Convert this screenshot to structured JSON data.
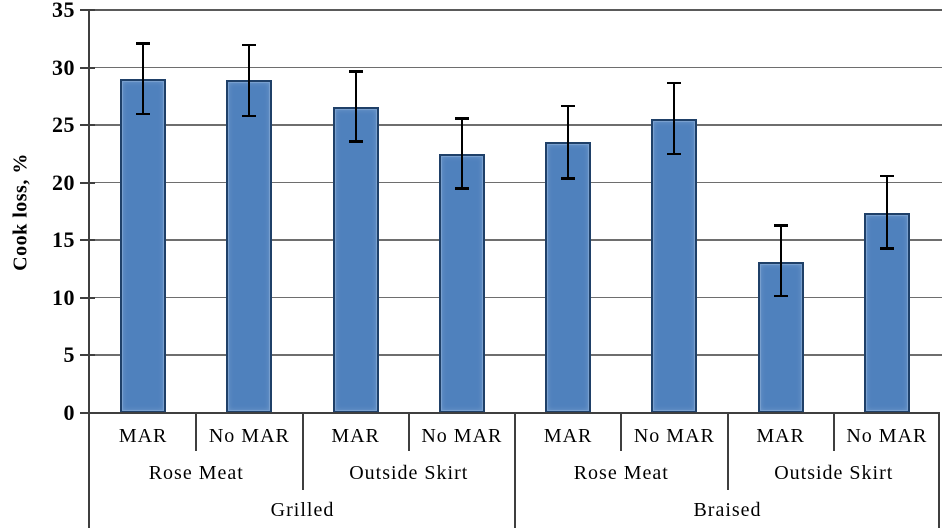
{
  "chart_data": {
    "type": "bar",
    "title": "",
    "xlabel": "",
    "ylabel": "Cook loss, %",
    "ylim": [
      0,
      35
    ],
    "yticks": [
      0,
      5,
      10,
      15,
      20,
      25,
      30,
      35
    ],
    "grid": true,
    "legend": "none",
    "error_bars": true,
    "bar_color": "#4f81bd",
    "bar_border_color": "#1f4068",
    "gridline_color": "#6e6e6e",
    "axis_color": "#3f3f3f",
    "error_bar_color": "#000000",
    "groups": [
      {
        "label": "Grilled",
        "subgroups": [
          {
            "label": "Rose Meat",
            "bars": [
              {
                "label": "MAR",
                "value": 29.0,
                "err_low": 26.0,
                "err_high": 32.1
              },
              {
                "label": "No MAR",
                "value": 28.9,
                "err_low": 25.8,
                "err_high": 32.0
              }
            ]
          },
          {
            "label": "Outside Skirt",
            "bars": [
              {
                "label": "MAR",
                "value": 26.6,
                "err_low": 23.6,
                "err_high": 29.7
              },
              {
                "label": "No MAR",
                "value": 22.5,
                "err_low": 19.5,
                "err_high": 25.6
              }
            ]
          }
        ]
      },
      {
        "label": "Braised",
        "subgroups": [
          {
            "label": "Rose Meat",
            "bars": [
              {
                "label": "MAR",
                "value": 23.5,
                "err_low": 20.4,
                "err_high": 26.7
              },
              {
                "label": "No MAR",
                "value": 25.5,
                "err_low": 22.5,
                "err_high": 28.7
              }
            ]
          },
          {
            "label": "Outside Skirt",
            "bars": [
              {
                "label": "MAR",
                "value": 13.1,
                "err_low": 10.2,
                "err_high": 16.3
              },
              {
                "label": "No MAR",
                "value": 17.4,
                "err_low": 14.3,
                "err_high": 20.6
              }
            ]
          }
        ]
      }
    ]
  }
}
